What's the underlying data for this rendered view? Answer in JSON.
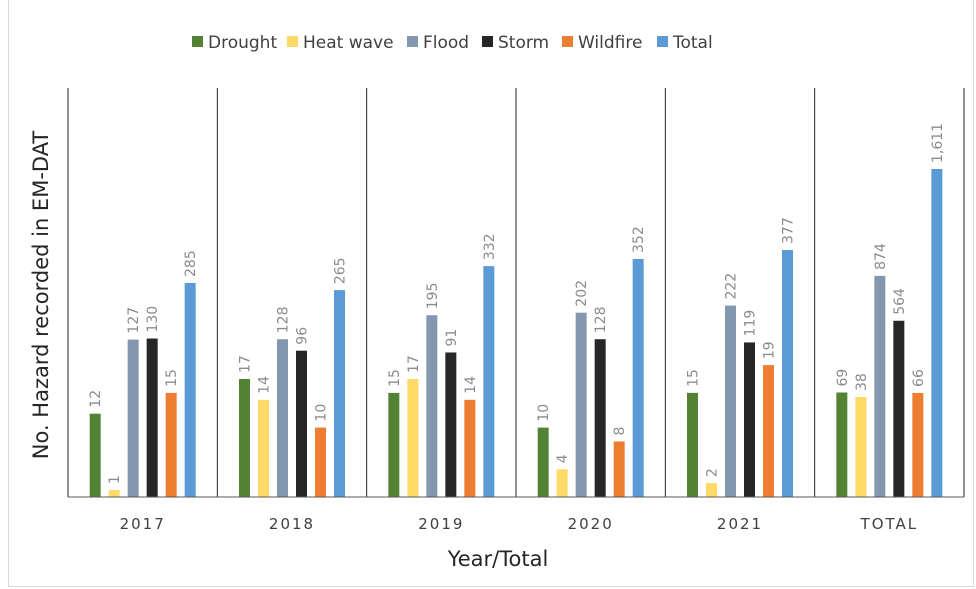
{
  "chart_data": {
    "type": "bar",
    "title": "",
    "xlabel": "Year/Total",
    "ylabel": "No. Hazard recorded in EM-DAT",
    "categories": [
      "2017",
      "2018",
      "2019",
      "2020",
      "2021",
      "TOTAL"
    ],
    "series": [
      {
        "name": "Drought",
        "color": "#548235",
        "values": [
          12,
          17,
          15,
          10,
          15,
          69
        ]
      },
      {
        "name": "Heat wave",
        "color": "#ffd966",
        "values": [
          1,
          14,
          17,
          4,
          2,
          38
        ]
      },
      {
        "name": "Flood",
        "color": "#8497b0",
        "values": [
          127,
          128,
          195,
          202,
          222,
          874
        ]
      },
      {
        "name": "Storm",
        "color": "#262626",
        "values": [
          130,
          96,
          91,
          128,
          119,
          564
        ]
      },
      {
        "name": "Wildfire",
        "color": "#ed7d31",
        "values": [
          15,
          10,
          14,
          8,
          19,
          66
        ]
      },
      {
        "name": "Total",
        "color": "#5b9bd5",
        "values": [
          285,
          265,
          332,
          352,
          377,
          1611
        ]
      }
    ],
    "data_labels": [
      [
        "12",
        "1",
        "127",
        "130",
        "15",
        "285"
      ],
      [
        "17",
        "14",
        "128",
        "96",
        "10",
        "265"
      ],
      [
        "15",
        "17",
        "195",
        "91",
        "14",
        "332"
      ],
      [
        "10",
        "4",
        "202",
        "128",
        "8",
        "352"
      ],
      [
        "15",
        "2",
        "222",
        "119",
        "19",
        "377"
      ],
      [
        "69",
        "38",
        "874",
        "564",
        "66",
        "1,611"
      ]
    ],
    "legend": "top-center",
    "y_axis_visible": false,
    "gridlines": false,
    "category_separators": true
  }
}
